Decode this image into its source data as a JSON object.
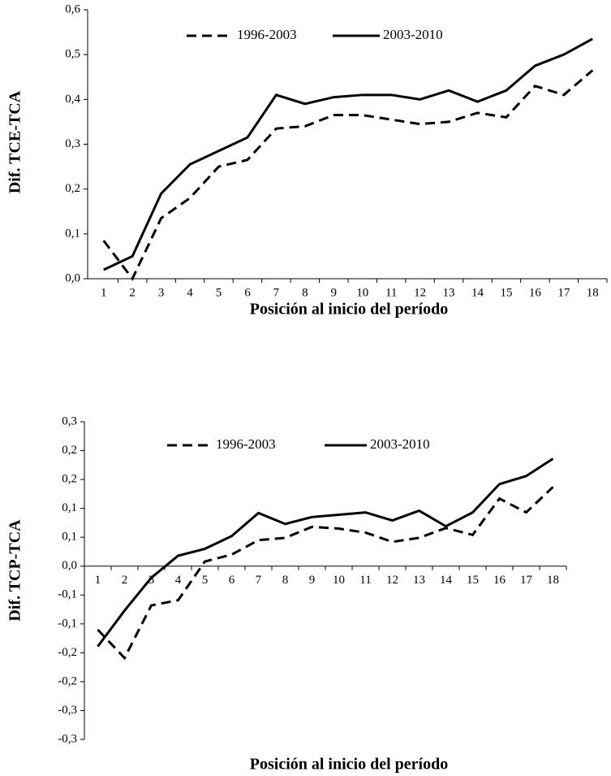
{
  "chart_data": [
    {
      "type": "line",
      "x_label": "Posición al inicio del período",
      "y_label": "Dif. TCE-TCA",
      "categories": [
        "1",
        "2",
        "3",
        "4",
        "5",
        "6",
        "7",
        "8",
        "9",
        "10",
        "11",
        "12",
        "13",
        "14",
        "15",
        "16",
        "17",
        "18"
      ],
      "series": [
        {
          "name": "1996-2003",
          "color": "#000000",
          "line_style": "dashed",
          "values": [
            0.085,
            0.0,
            0.135,
            0.18,
            0.25,
            0.265,
            0.335,
            0.34,
            0.365,
            0.365,
            0.355,
            0.345,
            0.35,
            0.37,
            0.36,
            0.43,
            0.41,
            0.465
          ]
        },
        {
          "name": "2003-2010",
          "color": "#000000",
          "line_style": "solid",
          "values": [
            0.02,
            0.05,
            0.19,
            0.255,
            0.285,
            0.315,
            0.41,
            0.39,
            0.405,
            0.41,
            0.41,
            0.4,
            0.42,
            0.395,
            0.42,
            0.475,
            0.5,
            0.535
          ]
        }
      ],
      "ylim": [
        0,
        0.6
      ],
      "yticks": [
        {
          "value": 0,
          "label": "0,0"
        },
        {
          "value": 0.1,
          "label": "0,1"
        },
        {
          "value": 0.2,
          "label": "0,2"
        },
        {
          "value": 0.3,
          "label": "0,3"
        },
        {
          "value": 0.4,
          "label": "0,4"
        },
        {
          "value": 0.5,
          "label": "0,5"
        },
        {
          "value": 0.6,
          "label": "0,6"
        }
      ],
      "legend": "top"
    },
    {
      "type": "line",
      "x_label": "Posición al inicio del período",
      "y_label": "Dif. TCP-TCA",
      "categories": [
        "1",
        "2",
        "3",
        "4",
        "5",
        "6",
        "7",
        "8",
        "9",
        "10",
        "11",
        "12",
        "13",
        "14",
        "15",
        "16",
        "17",
        "18"
      ],
      "series": [
        {
          "name": "1996-2003",
          "color": "#000000",
          "line_style": "dashed",
          "values": [
            -0.11,
            -0.159,
            -0.068,
            -0.059,
            0.008,
            0.02,
            0.045,
            0.049,
            0.068,
            0.065,
            0.058,
            0.042,
            0.049,
            0.066,
            0.054,
            0.117,
            0.093,
            0.137
          ]
        },
        {
          "name": "2003-2010",
          "color": "#000000",
          "line_style": "solid",
          "values": [
            -0.139,
            -0.077,
            -0.02,
            0.018,
            0.03,
            0.052,
            0.092,
            0.073,
            0.085,
            0.089,
            0.093,
            0.079,
            0.096,
            0.069,
            0.093,
            0.142,
            0.156,
            0.186
          ]
        }
      ],
      "ylim": [
        -0.3,
        0.25
      ],
      "yticks": [
        {
          "value": -0.3,
          "label": "-0,3"
        },
        {
          "value": -0.25,
          "label": "-0,3"
        },
        {
          "value": -0.2,
          "label": "-0,2"
        },
        {
          "value": -0.15,
          "label": "-0,2"
        },
        {
          "value": -0.1,
          "label": "-0,1"
        },
        {
          "value": -0.05,
          "label": "-0,1"
        },
        {
          "value": 0,
          "label": "0,0"
        },
        {
          "value": 0.05,
          "label": "0,1"
        },
        {
          "value": 0.1,
          "label": "0,1"
        },
        {
          "value": 0.15,
          "label": "0,2"
        },
        {
          "value": 0.2,
          "label": "0,2"
        },
        {
          "value": 0.25,
          "label": "0,3"
        }
      ],
      "legend": "top"
    }
  ]
}
